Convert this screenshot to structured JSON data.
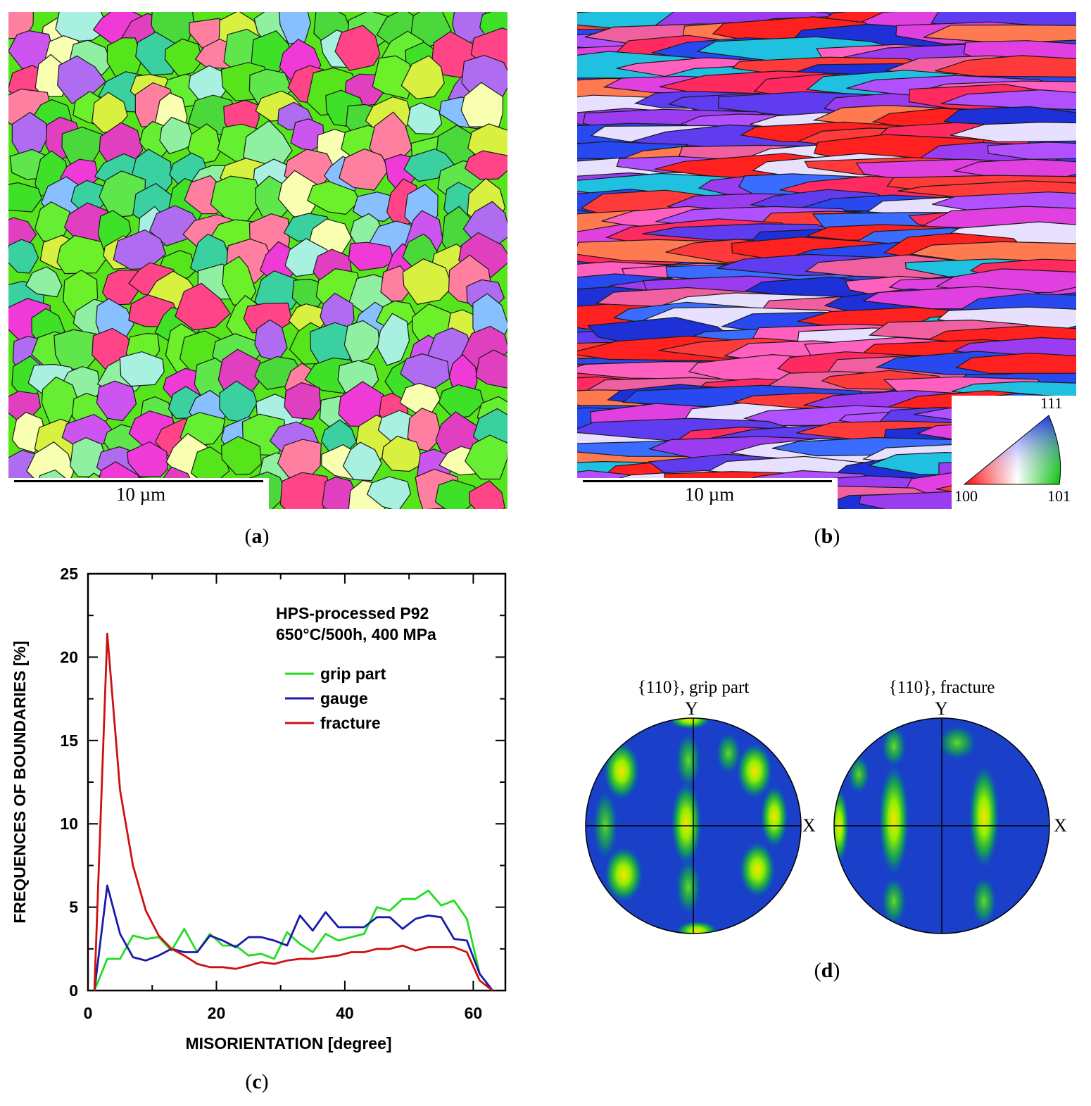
{
  "panels": {
    "a": {
      "caption_open": "(",
      "caption_letter": "a",
      "caption_close": ")",
      "scale_label": "10 µm"
    },
    "b": {
      "caption_open": "(",
      "caption_letter": "b",
      "caption_close": ")",
      "scale_label": "10 µm",
      "ipf_key": {
        "top": "111",
        "left": "100",
        "right": "101"
      }
    },
    "c": {
      "caption_open": "(",
      "caption_letter": "c",
      "caption_close": ")"
    },
    "d": {
      "caption_open": "(",
      "caption_letter": "d",
      "caption_close": ")",
      "pole_figures": [
        {
          "title": "{110}, grip part",
          "y_axis": "Y",
          "x_axis": "X"
        },
        {
          "title": "{110}, fracture",
          "y_axis": "Y",
          "x_axis": "X"
        }
      ]
    }
  },
  "colors": {
    "grip": "#22dd22",
    "gauge": "#1a1aaa",
    "fracture": "#cc1111"
  },
  "chart_data": {
    "type": "line",
    "title": "",
    "annotation_line1": "HPS-processed P92",
    "annotation_line2": "650°C/500h, 400 MPa",
    "xlabel": "MISORIENTATION [degree]",
    "ylabel": "FREQUENCES OF BOUNDARIES [%]",
    "xlim": [
      0,
      65
    ],
    "ylim": [
      0,
      25
    ],
    "xticks": [
      0,
      20,
      40,
      60
    ],
    "yticks": [
      0,
      5,
      10,
      15,
      20,
      25
    ],
    "legend_position": "top-right",
    "series": [
      {
        "name": "grip part",
        "color": "#22dd22",
        "x": [
          1,
          3,
          5,
          7,
          9,
          11,
          13,
          15,
          17,
          19,
          21,
          23,
          25,
          27,
          29,
          31,
          33,
          35,
          37,
          39,
          41,
          43,
          45,
          47,
          49,
          51,
          53,
          55,
          57,
          59,
          61,
          63
        ],
        "y": [
          0,
          1.9,
          1.9,
          3.3,
          3.1,
          3.2,
          2.4,
          3.7,
          2.3,
          3.4,
          2.7,
          2.7,
          2.1,
          2.2,
          1.9,
          3.5,
          2.8,
          2.3,
          3.4,
          3.0,
          3.2,
          3.4,
          5.0,
          4.8,
          5.5,
          5.5,
          6.0,
          5.1,
          5.4,
          4.3,
          1.0,
          0
        ]
      },
      {
        "name": "gauge",
        "color": "#1a1aaa",
        "x": [
          1,
          3,
          5,
          7,
          9,
          11,
          13,
          15,
          17,
          19,
          21,
          23,
          25,
          27,
          29,
          31,
          33,
          35,
          37,
          39,
          41,
          43,
          45,
          47,
          49,
          51,
          53,
          55,
          57,
          59,
          61,
          63
        ],
        "y": [
          0,
          6.3,
          3.4,
          2.0,
          1.8,
          2.1,
          2.5,
          2.3,
          2.3,
          3.3,
          3.0,
          2.6,
          3.2,
          3.2,
          3.0,
          2.7,
          4.5,
          3.6,
          4.7,
          3.8,
          3.8,
          3.8,
          4.4,
          4.4,
          3.7,
          4.3,
          4.5,
          4.4,
          3.1,
          3.0,
          1.0,
          0
        ]
      },
      {
        "name": "fracture",
        "color": "#cc1111",
        "x": [
          1,
          3,
          5,
          7,
          9,
          11,
          13,
          15,
          17,
          19,
          21,
          23,
          25,
          27,
          29,
          31,
          33,
          35,
          37,
          39,
          41,
          43,
          45,
          47,
          49,
          51,
          53,
          55,
          57,
          59,
          61,
          63
        ],
        "y": [
          0,
          21.4,
          12.0,
          7.5,
          4.8,
          3.3,
          2.5,
          2.1,
          1.6,
          1.4,
          1.4,
          1.3,
          1.5,
          1.7,
          1.6,
          1.8,
          1.9,
          1.9,
          2.0,
          2.1,
          2.3,
          2.3,
          2.5,
          2.5,
          2.7,
          2.4,
          2.6,
          2.6,
          2.6,
          2.3,
          0.6,
          0
        ]
      }
    ]
  }
}
